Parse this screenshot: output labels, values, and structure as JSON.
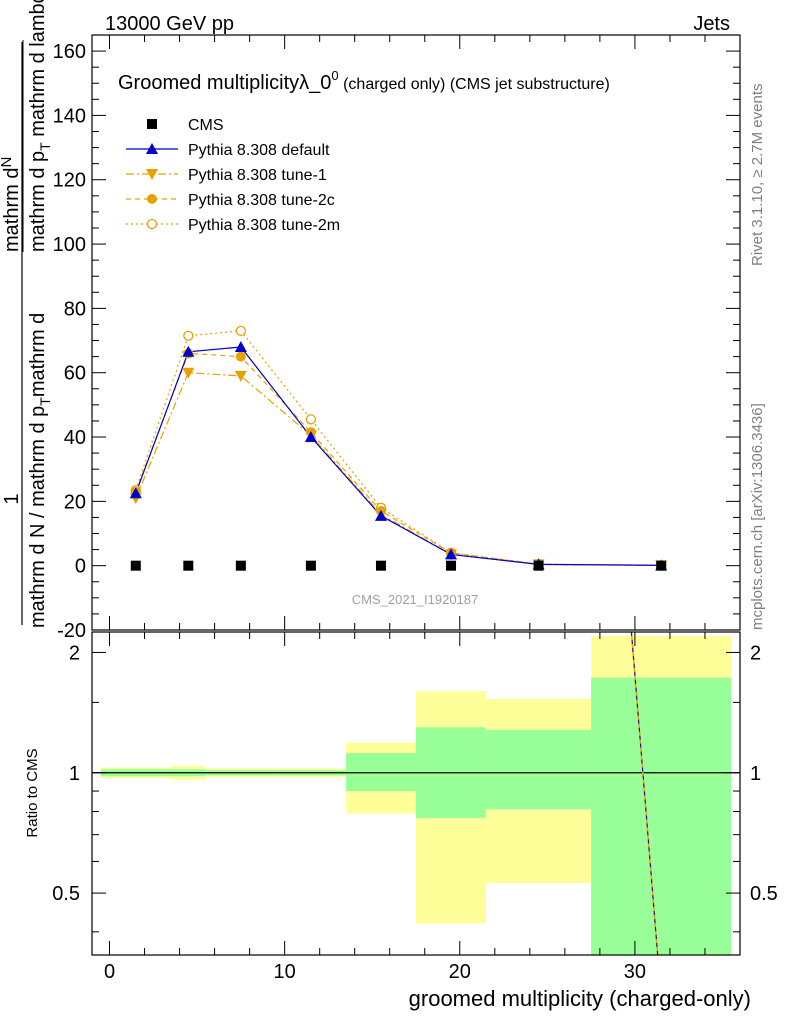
{
  "header": {
    "left": "13000 GeV pp",
    "right": "Jets"
  },
  "side_labels": {
    "rivet": "Rivet 3.1.10, ≥ 2.7M events",
    "mcplots": "mcplots.cern.ch [arXiv:1306.3436]"
  },
  "watermark": "CMS_2021_I1920187",
  "colors": {
    "cms": "#000000",
    "default": "#0000cc",
    "tunes": "#e8a000",
    "band_inner": "#99ff99",
    "band_outer": "#ffff99"
  },
  "chart_data": [
    {
      "type": "line",
      "title": "Groomed multiplicityλ_0",
      "title_sup": "0",
      "title_suffix": " (charged only) (CMS jet substructure)",
      "ylabel_numerator": "1",
      "ylabel_den1": "mathrm d N / mathrm d p",
      "ylabel_den1_sub": "T",
      "ylabel_den2": "mathrm d",
      "ylabel_dN_num": "mathrm d",
      "ylabel_dN_num2": "N",
      "ylabel_dN_den": "mathrm d p",
      "ylabel_dN_den_sub": "T",
      "ylabel_dN_den2": " mathrm d lambda",
      "ylim": [
        -20,
        165
      ],
      "yticks": [
        -20,
        0,
        20,
        40,
        60,
        80,
        100,
        120,
        140,
        160
      ],
      "xlim": [
        -1,
        36
      ],
      "x": [
        1.5,
        4.5,
        7.5,
        11.5,
        15.5,
        19.5,
        24.5,
        31.5
      ],
      "series": [
        {
          "name": "CMS",
          "marker": "square",
          "values": [
            0,
            0,
            0,
            0,
            0,
            0,
            0,
            0
          ]
        },
        {
          "name": "Pythia 8.308 default",
          "marker": "triangle-up",
          "values": [
            22.5,
            66.5,
            68,
            40,
            15.5,
            3.5,
            0.4,
            0.1
          ]
        },
        {
          "name": "Pythia 8.308 tune-1",
          "marker": "triangle-down",
          "values": [
            21,
            60,
            59,
            40.5,
            16,
            3.5,
            0.4,
            0.1
          ]
        },
        {
          "name": "Pythia 8.308 tune-2c",
          "marker": "circle",
          "values": [
            23,
            66,
            65,
            41.5,
            17,
            4,
            0.4,
            0.1
          ]
        },
        {
          "name": "Pythia 8.308 tune-2m",
          "marker": "open-circle",
          "values": [
            23.5,
            71.5,
            73,
            45.5,
            18,
            4,
            0.5,
            0.1
          ]
        }
      ]
    },
    {
      "type": "area",
      "ylabel": "Ratio to CMS",
      "xlabel": "groomed multiplicity (charged-only)",
      "xlim": [
        -1,
        36
      ],
      "xticks": [
        0,
        10,
        20,
        30
      ],
      "ylim": [
        0.35,
        2.25
      ],
      "yticks": [
        "0.5",
        "1",
        "2"
      ],
      "bands": [
        {
          "x0": -0.5,
          "x1": 3.5,
          "inner": [
            0.98,
            1.02
          ],
          "outer": [
            0.97,
            1.03
          ]
        },
        {
          "x0": 3.5,
          "x1": 5.5,
          "inner": [
            0.98,
            1.02
          ],
          "outer": [
            0.96,
            1.04
          ]
        },
        {
          "x0": 5.5,
          "x1": 9.5,
          "inner": [
            0.985,
            1.015
          ],
          "outer": [
            0.975,
            1.025
          ]
        },
        {
          "x0": 9.5,
          "x1": 13.5,
          "inner": [
            0.985,
            1.015
          ],
          "outer": [
            0.975,
            1.025
          ]
        },
        {
          "x0": 13.5,
          "x1": 17.5,
          "inner": [
            0.9,
            1.12
          ],
          "outer": [
            0.79,
            1.19
          ]
        },
        {
          "x0": 17.5,
          "x1": 21.5,
          "inner": [
            0.77,
            1.3
          ],
          "outer": [
            0.42,
            1.6
          ]
        },
        {
          "x0": 21.5,
          "x1": 27.5,
          "inner": [
            0.81,
            1.28
          ],
          "outer": [
            0.53,
            1.53
          ]
        },
        {
          "x0": 27.5,
          "x1": 35.5,
          "inner": [
            0.35,
            1.73
          ],
          "outer": [
            0.35,
            2.2
          ]
        }
      ],
      "steep_line": [
        [
          29.8,
          2.25
        ],
        [
          31.3,
          0.35
        ]
      ]
    }
  ]
}
